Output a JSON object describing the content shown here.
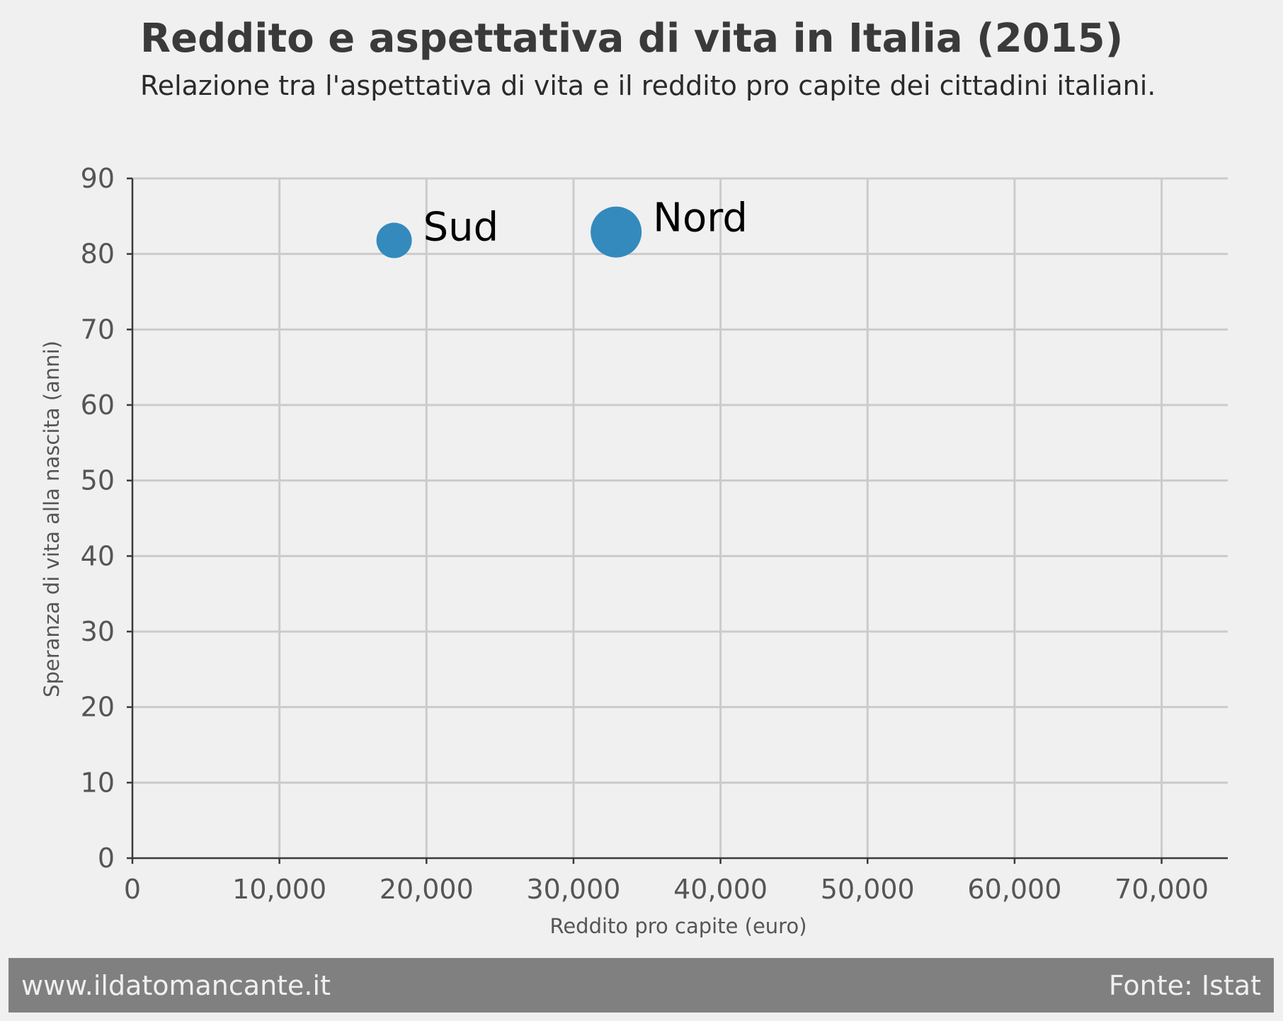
{
  "chart_data": {
    "type": "scatter",
    "title": "Reddito e aspettativa di vita in Italia (2015)",
    "subtitle": "Relazione tra l'aspettativa di vita e il reddito pro capite dei cittadini italiani.",
    "xlabel": "Reddito pro capite (euro)",
    "ylabel": "Speranza di vita alla nascita (anni)",
    "xlim": [
      0,
      74500
    ],
    "ylim": [
      0,
      90
    ],
    "xticks": [
      0,
      10000,
      20000,
      30000,
      40000,
      50000,
      60000,
      70000
    ],
    "xtick_labels": [
      "0",
      "10,000",
      "20,000",
      "30,000",
      "40,000",
      "50,000",
      "60,000",
      "70,000"
    ],
    "yticks": [
      0,
      10,
      20,
      30,
      40,
      50,
      60,
      70,
      80,
      90
    ],
    "ytick_labels": [
      "0",
      "10",
      "20",
      "30",
      "40",
      "50",
      "60",
      "70",
      "80",
      "90"
    ],
    "grid": true,
    "points": [
      {
        "label": "Sud",
        "x": 17800,
        "y": 81.8,
        "size": "small"
      },
      {
        "label": "Nord",
        "x": 32900,
        "y": 82.9,
        "size": "large"
      }
    ],
    "marker_color": "#348abd"
  },
  "footer": {
    "left": "www.ildatomancante.it",
    "right": "Fonte: Istat"
  }
}
